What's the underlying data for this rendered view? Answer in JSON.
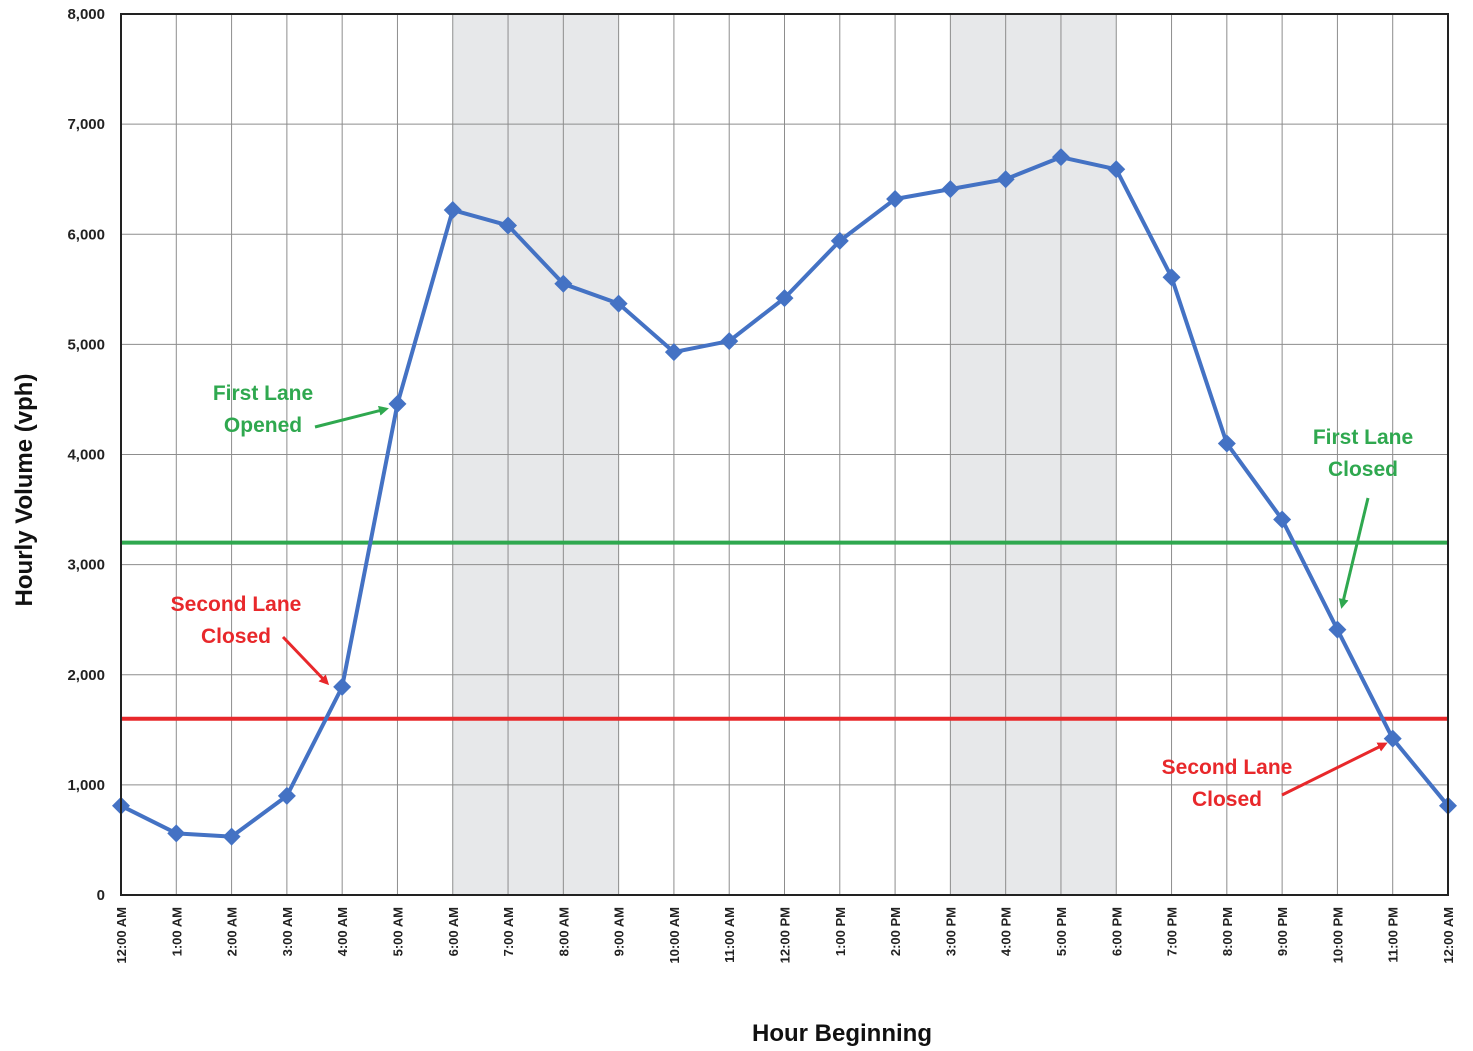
{
  "chart_data": {
    "type": "line",
    "title": "",
    "xlabel": "Hour Beginning",
    "ylabel": "Hourly Volume (vph)",
    "ylim": [
      0,
      8000
    ],
    "yticks": [
      "0",
      "1,000",
      "2,000",
      "3,000",
      "4,000",
      "5,000",
      "6,000",
      "7,000",
      "8,000"
    ],
    "categories": [
      "12:00 AM",
      "1:00 AM",
      "2:00 AM",
      "3:00 AM",
      "4:00 AM",
      "5:00 AM",
      "6:00 AM",
      "7:00 AM",
      "8:00 AM",
      "9:00 AM",
      "10:00 AM",
      "11:00 AM",
      "12:00 PM",
      "1:00 PM",
      "2:00 PM",
      "3:00 PM",
      "4:00 PM",
      "5:00 PM",
      "6:00 PM",
      "7:00 PM",
      "8:00 PM",
      "9:00 PM",
      "10:00 PM",
      "11:00 PM",
      "12:00 AM"
    ],
    "grid": true,
    "shaded_bands": [
      {
        "from_index": 6,
        "to_index": 9
      },
      {
        "from_index": 15,
        "to_index": 18
      }
    ],
    "series": [
      {
        "color": "#4472C4",
        "marker": "diamond",
        "values": [
          810,
          560,
          530,
          900,
          1890,
          4460,
          6220,
          6080,
          5550,
          5370,
          4930,
          5030,
          5420,
          5940,
          6320,
          6410,
          6500,
          6700,
          6590,
          5610,
          4100,
          3410,
          2410,
          1420,
          810
        ]
      }
    ],
    "thresholds": [
      {
        "value": 3200,
        "color": "#2FA84F"
      },
      {
        "value": 1600,
        "color": "#E8282B"
      }
    ],
    "annotations": [
      {
        "lines": [
          "First Lane",
          "Opened"
        ],
        "color": "#2FA84F",
        "target_index": 5
      },
      {
        "lines": [
          "Second Lane",
          "Closed"
        ],
        "color": "#E8282B",
        "target_index": 4
      },
      {
        "lines": [
          "First Lane",
          "Closed"
        ],
        "color": "#2FA84F",
        "target_index": 22
      },
      {
        "lines": [
          "Second Lane",
          "Closed"
        ],
        "color": "#E8282B",
        "target_index": 23
      }
    ]
  }
}
